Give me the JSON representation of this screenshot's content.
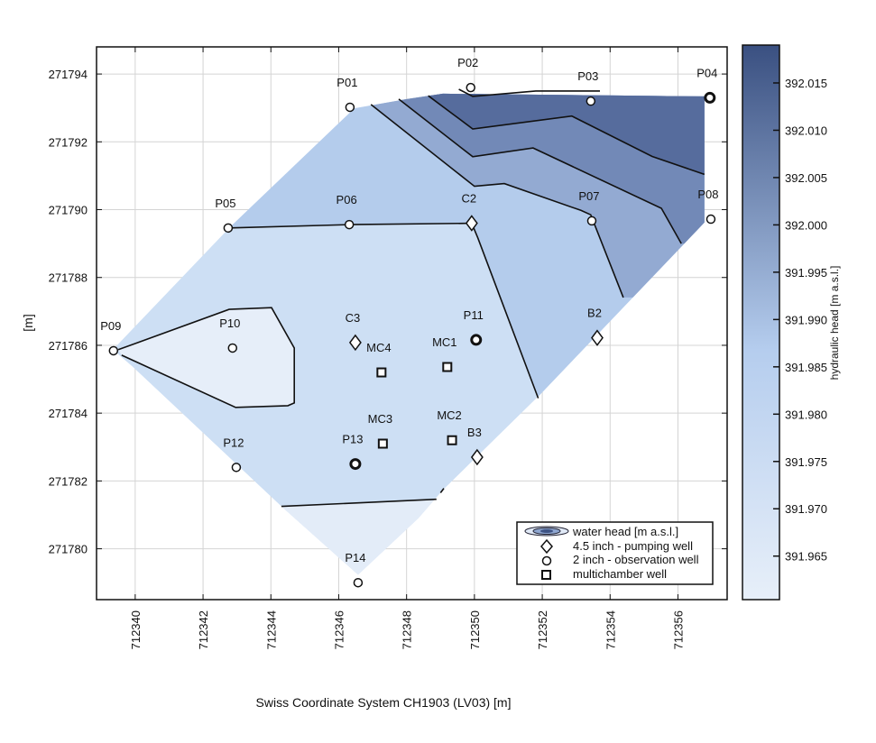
{
  "chart_data": {
    "type": "contour",
    "xlabel": "Swiss Coordinate System CH1903 (LV03) [m]",
    "ylabel": "[m]",
    "xlim": [
      712338.86,
      712357.45
    ],
    "ylim": [
      271778.5,
      271794.8
    ],
    "xticks": [
      712340,
      712342,
      712344,
      712346,
      712348,
      712350,
      712352,
      712354,
      712356
    ],
    "yticks": [
      271780,
      271782,
      271784,
      271786,
      271788,
      271790,
      271792,
      271794
    ],
    "grid": true,
    "colorbar": {
      "label": "hydraulic head [m a.s.l.]",
      "range": [
        391.9604,
        392.019
      ],
      "ticks": [
        "391.965",
        "391.970",
        "391.975",
        "391.980",
        "391.985",
        "391.990",
        "391.995",
        "392.000",
        "392.005",
        "392.010",
        "392.015"
      ],
      "color_low": "#e7eff9",
      "color_high": "#3a5081"
    },
    "legend": {
      "placement": "bottom-right",
      "entries": [
        {
          "symbol": "contour",
          "label": "water head [m a.s.l.]"
        },
        {
          "symbol": "diamond",
          "label": "4.5 inch - pumping well"
        },
        {
          "symbol": "circle",
          "label": "2 inch - observation well"
        },
        {
          "symbol": "square",
          "label": "multichamber well"
        }
      ]
    },
    "domain": [
      [
        712346.46,
        271792.99
      ],
      [
        712348.01,
        271793.26
      ],
      [
        712349.07,
        271793.42
      ],
      [
        712356.78,
        271793.34
      ],
      [
        712356.78,
        271789.62
      ],
      [
        712351.91,
        271784.52
      ],
      [
        712349.07,
        271781.73
      ],
      [
        712348.35,
        271780.9
      ],
      [
        712346.57,
        271779.23
      ],
      [
        712344.31,
        271781.25
      ],
      [
        712339.92,
        271785.37
      ],
      [
        712339.34,
        271785.87
      ],
      [
        712342.77,
        271789.46
      ]
    ],
    "filled_regions": [
      {
        "color": "#cddff4",
        "points": "domain"
      },
      {
        "color": "#b4ccec",
        "points": [
          [
            712338,
            271789.46
          ],
          [
            712342.77,
            271789.46
          ],
          [
            712346.31,
            271789.56
          ],
          [
            712349.92,
            271789.6
          ],
          [
            712350.1,
            271789.17
          ],
          [
            712351.88,
            271784.44
          ],
          [
            712360,
            271784.44
          ],
          [
            712360,
            271796
          ],
          [
            712338,
            271796
          ]
        ]
      },
      {
        "color": "#93aad2",
        "points": [
          [
            712346.95,
            271793.1
          ],
          [
            712350.0,
            271790.69
          ],
          [
            712350.88,
            271790.77
          ],
          [
            712353.14,
            271789.98
          ],
          [
            712353.43,
            271789.85
          ],
          [
            712354.39,
            271787.41
          ],
          [
            712360,
            271787.41
          ],
          [
            712360,
            271796
          ],
          [
            712347,
            271796
          ]
        ]
      },
      {
        "color": "#7289b7",
        "points": [
          [
            712347.77,
            271793.26
          ],
          [
            712349.95,
            271791.56
          ],
          [
            712351.73,
            271791.82
          ],
          [
            712355.51,
            271790.04
          ],
          [
            712356.1,
            271789.0
          ],
          [
            712360,
            271789.0
          ],
          [
            712360,
            271796
          ],
          [
            712347.77,
            271796
          ]
        ]
      },
      {
        "color": "#566c9d",
        "points": [
          [
            712348.64,
            271793.36
          ],
          [
            712349.95,
            271792.38
          ],
          [
            712352.87,
            271792.76
          ],
          [
            712355.24,
            271791.57
          ],
          [
            712356.78,
            271791.04
          ],
          [
            712360,
            271791.04
          ],
          [
            712360,
            271796
          ],
          [
            712348.64,
            271796
          ]
        ]
      },
      {
        "color": "#3d5283",
        "points": [
          [
            712349.54,
            271793.55
          ],
          [
            712349.95,
            271793.34
          ],
          [
            712351.81,
            271793.5
          ],
          [
            712353.7,
            271793.5
          ],
          [
            712353.7,
            271796
          ],
          [
            712349.54,
            271796
          ]
        ]
      },
      {
        "color": "#e6eef9",
        "points": [
          [
            712339.5,
            271785.87
          ],
          [
            712342.77,
            271787.06
          ],
          [
            712344.02,
            271787.11
          ],
          [
            712344.69,
            271785.92
          ],
          [
            712344.69,
            271784.3
          ],
          [
            712344.5,
            271784.22
          ],
          [
            712342.96,
            271784.17
          ],
          [
            712339.6,
            271785.71
          ]
        ]
      },
      {
        "color": "#e3ecf8",
        "points": [
          [
            712344.31,
            271781.25
          ],
          [
            712348.88,
            271781.46
          ],
          [
            712349.2,
            271781.2
          ],
          [
            712347,
            271777
          ],
          [
            712343,
            271777
          ]
        ]
      }
    ],
    "contours": [
      [
        [
          712342.77,
          271789.46
        ],
        [
          712346.31,
          271789.56
        ],
        [
          712349.92,
          271789.6
        ],
        [
          712350.1,
          271789.17
        ],
        [
          712351.88,
          271784.44
        ]
      ],
      [
        [
          712346.95,
          271793.1
        ],
        [
          712350.0,
          271790.69
        ],
        [
          712350.88,
          271790.77
        ],
        [
          712353.14,
          271789.98
        ],
        [
          712353.43,
          271789.85
        ],
        [
          712354.39,
          271787.41
        ]
      ],
      [
        [
          712347.77,
          271793.26
        ],
        [
          712349.95,
          271791.56
        ],
        [
          712351.73,
          271791.82
        ],
        [
          712355.51,
          271790.04
        ],
        [
          712356.1,
          271789.0
        ]
      ],
      [
        [
          712348.64,
          271793.36
        ],
        [
          712349.95,
          271792.38
        ],
        [
          712352.87,
          271792.76
        ],
        [
          712355.24,
          271791.57
        ],
        [
          712356.78,
          271791.04
        ]
      ],
      [
        [
          712349.54,
          271793.55
        ],
        [
          712349.95,
          271793.34
        ],
        [
          712351.81,
          271793.5
        ],
        [
          712353.7,
          271793.5
        ]
      ],
      [
        [
          712339.5,
          271785.87
        ],
        [
          712342.77,
          271787.06
        ],
        [
          712344.02,
          271787.11
        ],
        [
          712344.69,
          271785.92
        ],
        [
          712344.69,
          271784.3
        ],
        [
          712344.5,
          271784.22
        ],
        [
          712342.96,
          271784.17
        ],
        [
          712339.6,
          271785.71
        ]
      ],
      [
        [
          712344.31,
          271781.25
        ],
        [
          712348.88,
          271781.46
        ]
      ],
      [
        [
          712349.0,
          271781.65
        ],
        [
          712349.1,
          271781.78
        ]
      ]
    ],
    "wells": [
      {
        "name": "P01",
        "type": "circle",
        "x": 712346.33,
        "y": 271793.02,
        "bold": false
      },
      {
        "name": "P02",
        "type": "circle",
        "x": 712349.89,
        "y": 271793.6,
        "bold": false
      },
      {
        "name": "P03",
        "type": "circle",
        "x": 712353.43,
        "y": 271793.2,
        "bold": false
      },
      {
        "name": "P04",
        "type": "circle",
        "x": 712356.94,
        "y": 271793.3,
        "bold": true
      },
      {
        "name": "P05",
        "type": "circle",
        "x": 712342.74,
        "y": 271789.46,
        "bold": false
      },
      {
        "name": "P06",
        "type": "circle",
        "x": 712346.31,
        "y": 271789.56,
        "bold": false
      },
      {
        "name": "C2",
        "type": "diamond",
        "x": 712349.92,
        "y": 271789.6,
        "bold": false
      },
      {
        "name": "P07",
        "type": "circle",
        "x": 712353.46,
        "y": 271789.67,
        "bold": false
      },
      {
        "name": "P08",
        "type": "circle",
        "x": 712356.97,
        "y": 271789.72,
        "bold": false
      },
      {
        "name": "P09",
        "type": "circle",
        "x": 712339.36,
        "y": 271785.84,
        "bold": false
      },
      {
        "name": "P10",
        "type": "circle",
        "x": 712342.87,
        "y": 271785.92,
        "bold": false
      },
      {
        "name": "C3",
        "type": "diamond",
        "x": 712346.49,
        "y": 271786.08,
        "bold": false
      },
      {
        "name": "P11",
        "type": "circle",
        "x": 712350.05,
        "y": 271786.16,
        "bold": true
      },
      {
        "name": "B2",
        "type": "diamond",
        "x": 712353.62,
        "y": 271786.22,
        "bold": false
      },
      {
        "name": "MC4",
        "type": "square",
        "x": 712347.26,
        "y": 271785.2,
        "bold": false
      },
      {
        "name": "MC1",
        "type": "square",
        "x": 712349.2,
        "y": 271785.36,
        "bold": false
      },
      {
        "name": "MC3",
        "type": "square",
        "x": 712347.3,
        "y": 271783.1,
        "bold": false
      },
      {
        "name": "MC2",
        "type": "square",
        "x": 712349.34,
        "y": 271783.2,
        "bold": false
      },
      {
        "name": "B3",
        "type": "diamond",
        "x": 712350.08,
        "y": 271782.7,
        "bold": false
      },
      {
        "name": "P12",
        "type": "circle",
        "x": 712342.98,
        "y": 271782.4,
        "bold": false
      },
      {
        "name": "P13",
        "type": "circle",
        "x": 712346.49,
        "y": 271782.5,
        "bold": true
      },
      {
        "name": "P14",
        "type": "circle",
        "x": 712346.57,
        "y": 271779.0,
        "bold": false
      }
    ]
  }
}
